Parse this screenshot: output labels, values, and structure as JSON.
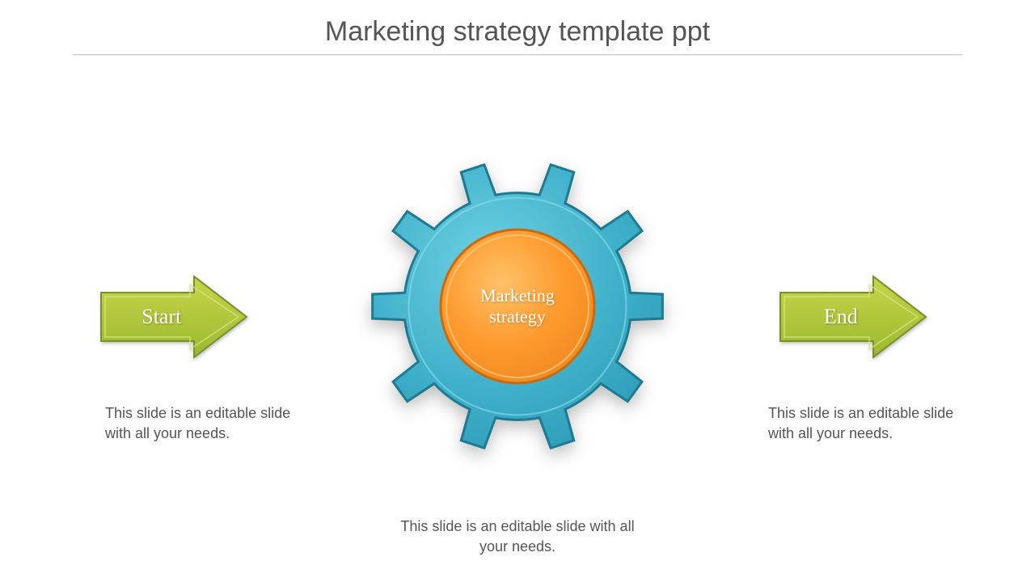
{
  "title": "Marketing strategy template ppt",
  "title_fontsize": 34,
  "title_color": "#555555",
  "divider_color": "#cccccc",
  "background_color": "#ffffff",
  "arrows": {
    "start": {
      "label": "Start",
      "caption": "This slide is an editable slide with all your needs.",
      "fill_light": "#c4d64a",
      "fill_dark": "#9eb82f",
      "stroke": "#7a8f28",
      "label_color": "#ffffff",
      "label_fontsize": 26
    },
    "end": {
      "label": "End",
      "caption": "This slide is an editable slide with all your needs.",
      "fill_light": "#c4d64a",
      "fill_dark": "#9eb82f",
      "stroke": "#7a8f28",
      "label_color": "#ffffff",
      "label_fontsize": 26
    }
  },
  "gear": {
    "label": "Marketing strategy",
    "caption": "This slide is an editable slide with all your needs.",
    "outer_fill_light": "#5bc4d9",
    "outer_fill_dark": "#2d9bb5",
    "outer_stroke": "#1d7a91",
    "inner_fill_light": "#ffb347",
    "inner_fill_dark": "#e8851f",
    "inner_stroke": "#c96a0f",
    "label_color": "#ffffff",
    "label_fontsize": 22,
    "teeth": 10,
    "outer_radius": 180,
    "inner_radius": 95
  },
  "caption_fontsize": 18,
  "caption_color": "#555555"
}
